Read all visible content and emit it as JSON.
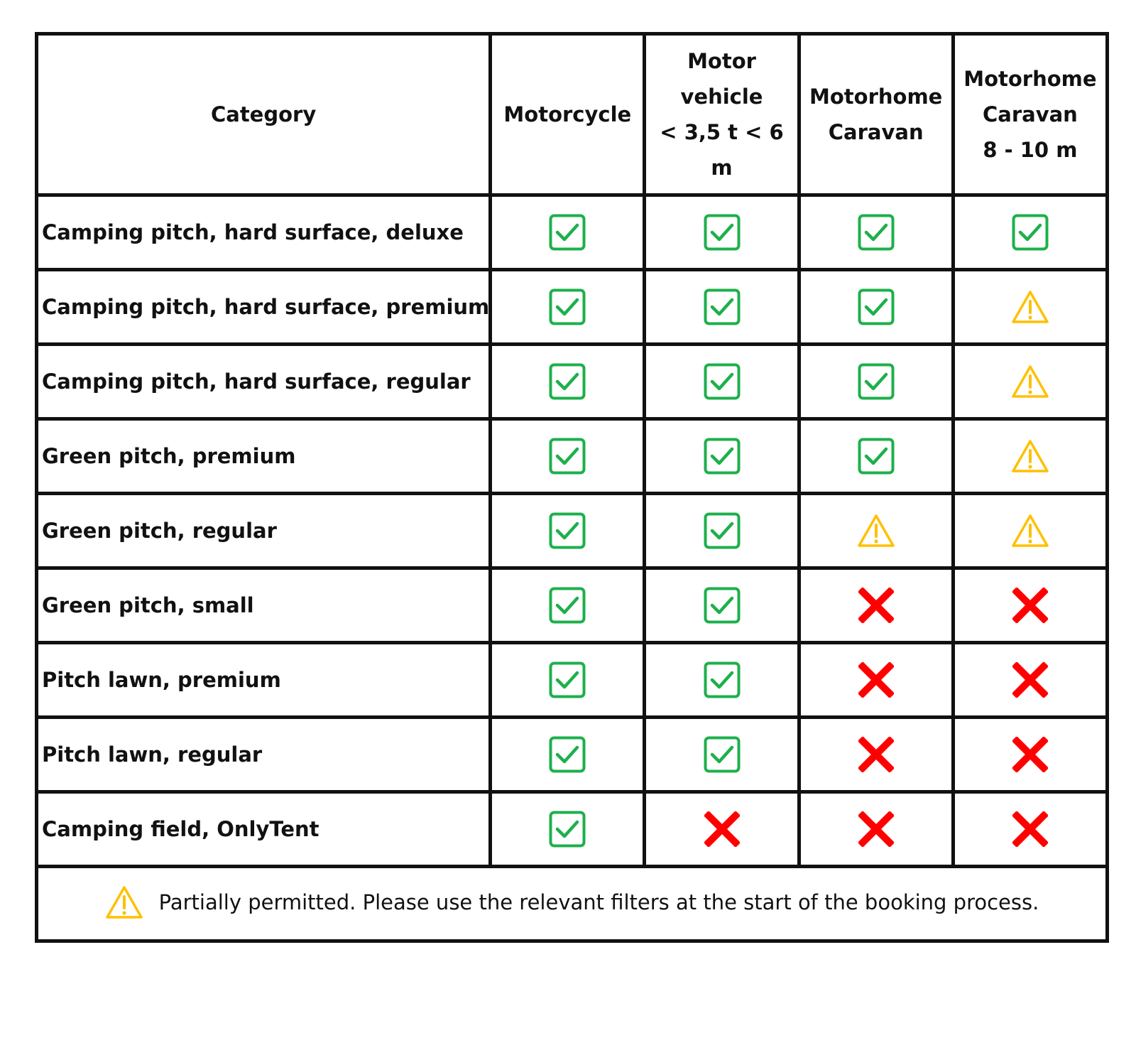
{
  "header": {
    "category": "Category",
    "columns": [
      {
        "lines": [
          "Motorcycle"
        ]
      },
      {
        "lines": [
          "Motor",
          "vehicle",
          "< 3,5 t < 6 m"
        ]
      },
      {
        "lines": [
          "Motorhome",
          "Caravan"
        ]
      },
      {
        "lines": [
          "Motorhome",
          "Caravan",
          "8 - 10 m"
        ]
      }
    ]
  },
  "rows": [
    {
      "category": "Camping pitch, hard surface, deluxe",
      "values": [
        "check",
        "check",
        "check",
        "check"
      ]
    },
    {
      "category": "Camping pitch, hard surface, premium",
      "values": [
        "check",
        "check",
        "check",
        "warning"
      ]
    },
    {
      "category": "Camping pitch, hard surface, regular",
      "values": [
        "check",
        "check",
        "check",
        "warning"
      ]
    },
    {
      "category": "Green pitch, premium",
      "values": [
        "check",
        "check",
        "check",
        "warning"
      ]
    },
    {
      "category": "Green pitch, regular",
      "values": [
        "check",
        "check",
        "warning",
        "warning"
      ]
    },
    {
      "category": "Green pitch, small",
      "values": [
        "check",
        "check",
        "cross",
        "cross"
      ]
    },
    {
      "category": "Pitch lawn, premium",
      "values": [
        "check",
        "check",
        "cross",
        "cross"
      ]
    },
    {
      "category": "Pitch lawn, regular",
      "values": [
        "check",
        "check",
        "cross",
        "cross"
      ]
    },
    {
      "category": "Camping field, OnlyTent",
      "values": [
        "check",
        "cross",
        "cross",
        "cross"
      ]
    }
  ],
  "footer": {
    "icon": "warning",
    "text": "Partially permitted. Please use the relevant filters at the start of the booking process."
  },
  "colors": {
    "check": "#1db04b",
    "warning": "#ffc000",
    "cross": "#ff0000",
    "border": "#111111"
  }
}
